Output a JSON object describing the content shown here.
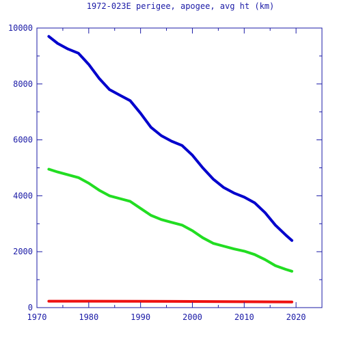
{
  "chart_data": {
    "type": "line",
    "title": "1972-023E perigee, apogee, avg ht (km)",
    "xlabel": "",
    "ylabel": "",
    "xlim": [
      1970,
      2025
    ],
    "ylim": [
      0,
      10000
    ],
    "x_ticks": [
      1970,
      1980,
      1990,
      2000,
      2010,
      2020
    ],
    "y_ticks": [
      0,
      2000,
      4000,
      6000,
      8000,
      10000
    ],
    "x_tick_labels": [
      "1970",
      "1980",
      "1990",
      "2000",
      "2010",
      "2020"
    ],
    "y_tick_labels": [
      "0",
      "2000",
      "4000",
      "6000",
      "8000",
      "10000"
    ],
    "legend": "none",
    "grid": false,
    "axis_color": "#1a1aa6",
    "series": [
      {
        "color": "#0000cc",
        "x": [
          1972.3,
          1974,
          1976,
          1978,
          1980,
          1982,
          1984,
          1986,
          1988,
          1990,
          1992,
          1994,
          1996,
          1998,
          2000,
          2002,
          2004,
          2006,
          2008,
          2010,
          2012,
          2014,
          2016,
          2018,
          2019.2
        ],
        "y": [
          9700,
          9450,
          9250,
          9100,
          8700,
          8200,
          7800,
          7600,
          7400,
          6950,
          6450,
          6150,
          5950,
          5800,
          5450,
          5000,
          4600,
          4300,
          4100,
          3950,
          3750,
          3400,
          2950,
          2600,
          2400
        ]
      },
      {
        "color": "#22dd22",
        "x": [
          1972.3,
          1974,
          1976,
          1978,
          1980,
          1982,
          1984,
          1986,
          1988,
          1990,
          1992,
          1994,
          1996,
          1998,
          2000,
          2002,
          2004,
          2006,
          2008,
          2010,
          2012,
          2014,
          2016,
          2018,
          2019.2
        ],
        "y": [
          4950,
          4850,
          4750,
          4650,
          4450,
          4200,
          4000,
          3900,
          3800,
          3550,
          3300,
          3150,
          3050,
          2950,
          2750,
          2500,
          2300,
          2200,
          2100,
          2020,
          1900,
          1720,
          1500,
          1370,
          1300
        ]
      },
      {
        "color": "#ee1111",
        "x": [
          1972.3,
          1980,
          1990,
          2000,
          2010,
          2019.2
        ],
        "y": [
          230,
          230,
          225,
          220,
          210,
          200
        ]
      }
    ]
  }
}
